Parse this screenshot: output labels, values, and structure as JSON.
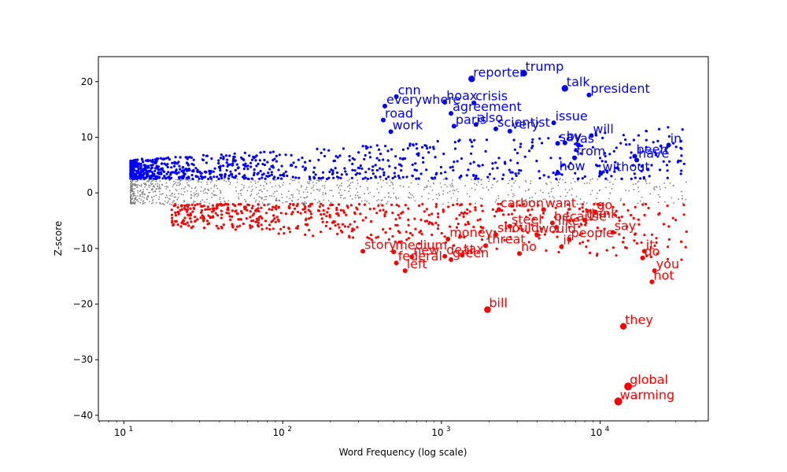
{
  "chart_data": {
    "type": "scatter",
    "title": "",
    "xlabel": "Word Frequency (log scale)",
    "ylabel": "Z-score",
    "x_scale": "log",
    "xlim": [
      6.9,
      48000
    ],
    "ylim": [
      -41,
      24.5
    ],
    "x_ticks": [
      {
        "value": 10,
        "base": "10",
        "exp": "1"
      },
      {
        "value": 100,
        "base": "10",
        "exp": "2"
      },
      {
        "value": 1000,
        "base": "10",
        "exp": "3"
      },
      {
        "value": 10000,
        "base": "10",
        "exp": "4"
      }
    ],
    "y_ticks": [
      20,
      10,
      0,
      -10,
      -20,
      -30,
      -40
    ],
    "grid": false,
    "colors": {
      "positive": "#0000ff",
      "negative": "#ff0000",
      "neutral": "#808080"
    },
    "labeled_points": [
      {
        "word": "trump",
        "x": 3300,
        "y": 21.5,
        "group": "positive"
      },
      {
        "word": "reporter",
        "x": 1550,
        "y": 20.5,
        "group": "positive"
      },
      {
        "word": "talk",
        "x": 6000,
        "y": 18.8,
        "group": "positive"
      },
      {
        "word": "president",
        "x": 8500,
        "y": 17.6,
        "group": "positive"
      },
      {
        "word": "cnn",
        "x": 520,
        "y": 17.3,
        "group": "positive"
      },
      {
        "word": "hoax",
        "x": 1050,
        "y": 16.3,
        "group": "positive"
      },
      {
        "word": "crisis",
        "x": 1600,
        "y": 16.2,
        "group": "positive"
      },
      {
        "word": "everywhere",
        "x": 440,
        "y": 15.6,
        "group": "positive"
      },
      {
        "word": "agreement",
        "x": 1150,
        "y": 14.3,
        "group": "positive"
      },
      {
        "word": "road",
        "x": 430,
        "y": 13.1,
        "group": "positive"
      },
      {
        "word": "issue",
        "x": 5100,
        "y": 12.6,
        "group": "positive"
      },
      {
        "word": "also",
        "x": 1650,
        "y": 12.3,
        "group": "positive"
      },
      {
        "word": "paris",
        "x": 1200,
        "y": 12.0,
        "group": "positive"
      },
      {
        "word": "scientist",
        "x": 2200,
        "y": 11.5,
        "group": "positive"
      },
      {
        "word": "very",
        "x": 2700,
        "y": 11.1,
        "group": "positive"
      },
      {
        "word": "will",
        "x": 8800,
        "y": 10.3,
        "group": "positive"
      },
      {
        "word": "work",
        "x": 480,
        "y": 11.0,
        "group": "positive"
      },
      {
        "word": "as",
        "x": 7300,
        "y": 8.6,
        "group": "positive"
      },
      {
        "word": "in",
        "x": 27000,
        "y": 8.6,
        "group": "positive"
      },
      {
        "word": "say",
        "x": 5400,
        "y": 8.9,
        "group": "positive"
      },
      {
        "word": "by",
        "x": 6000,
        "y": 9.0,
        "group": "positive"
      },
      {
        "word": "been",
        "x": 16500,
        "y": 6.6,
        "group": "positive"
      },
      {
        "word": "have",
        "x": 17000,
        "y": 5.9,
        "group": "positive"
      },
      {
        "word": "from",
        "x": 6900,
        "y": 6.3,
        "group": "positive"
      },
      {
        "word": "without",
        "x": 10100,
        "y": 3.5,
        "group": "positive"
      },
      {
        "word": "how",
        "x": 5400,
        "y": 3.6,
        "group": "positive"
      },
      {
        "word": "bill",
        "x": 1950,
        "y": -21.0,
        "group": "negative"
      },
      {
        "word": "they",
        "x": 14000,
        "y": -24.0,
        "group": "negative"
      },
      {
        "word": "global",
        "x": 15000,
        "y": -34.8,
        "group": "negative"
      },
      {
        "word": "warming",
        "x": 13000,
        "y": -37.5,
        "group": "negative"
      },
      {
        "word": "it",
        "x": 19000,
        "y": -10.5,
        "group": "negative"
      },
      {
        "word": "do",
        "x": 18500,
        "y": -11.7,
        "group": "negative"
      },
      {
        "word": "you",
        "x": 22000,
        "y": -14.0,
        "group": "negative"
      },
      {
        "word": "not",
        "x": 21200,
        "y": -16.0,
        "group": "negative"
      },
      {
        "word": "say",
        "x": 12000,
        "y": -7.1,
        "group": "negative"
      },
      {
        "word": "people",
        "x": 6400,
        "y": -8.4,
        "group": "negative"
      },
      {
        "word": "would",
        "x": 4000,
        "y": -7.6,
        "group": "negative"
      },
      {
        "word": "if",
        "x": 5700,
        "y": -9.7,
        "group": "negative"
      },
      {
        "word": "no",
        "x": 3100,
        "y": -10.9,
        "group": "negative"
      },
      {
        "word": "threat",
        "x": 1900,
        "y": -9.5,
        "group": "negative"
      },
      {
        "word": "money",
        "x": 1100,
        "y": -8.3,
        "group": "negative"
      },
      {
        "word": "green",
        "x": 1150,
        "y": -12.0,
        "group": "negative"
      },
      {
        "word": "left",
        "x": 590,
        "y": -14.0,
        "group": "negative"
      },
      {
        "word": "go",
        "x": 9300,
        "y": -3.4,
        "group": "negative"
      },
      {
        "word": "think",
        "x": 8000,
        "y": -4.9,
        "group": "negative"
      },
      {
        "word": "because",
        "x": 5000,
        "y": -5.4,
        "group": "negative"
      },
      {
        "word": "like",
        "x": 5300,
        "y": -6.2,
        "group": "negative"
      },
      {
        "word": "should",
        "x": 2200,
        "y": -7.5,
        "group": "negative"
      },
      {
        "word": "want",
        "x": 4400,
        "y": -3.0,
        "group": "negative"
      },
      {
        "word": "carbon",
        "x": 2300,
        "y": -3.0,
        "group": "negative"
      },
      {
        "word": "steel",
        "x": 2700,
        "y": -6.0,
        "group": "negative"
      },
      {
        "word": "tax",
        "x": 1350,
        "y": -11.2,
        "group": "negative"
      },
      {
        "word": "deal",
        "x": 1050,
        "y": -11.4,
        "group": "negative"
      },
      {
        "word": "new",
        "x": 650,
        "y": -11.5,
        "group": "negative"
      },
      {
        "word": "federal",
        "x": 520,
        "y": -12.6,
        "group": "negative"
      },
      {
        "word": "story",
        "x": 320,
        "y": -10.5,
        "group": "negative"
      },
      {
        "word": "medium",
        "x": 500,
        "y": -10.6,
        "group": "negative"
      }
    ]
  }
}
